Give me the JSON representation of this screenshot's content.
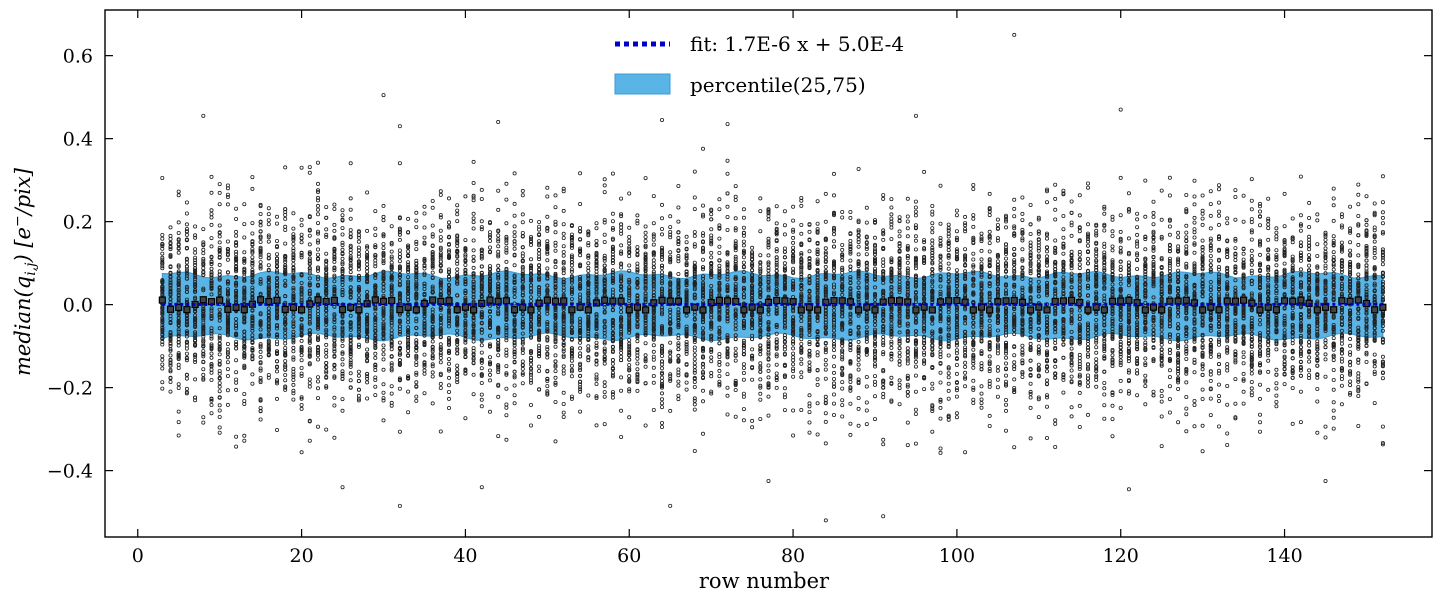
{
  "chart_data": {
    "type": "scatter",
    "xlabel": "row number",
    "ylabel": "median(q_{i,j}) [e^-/pix]",
    "ylabel_parts": {
      "prefix": "median(q",
      "subscript": "i,j",
      "middle": ") [e",
      "superscript": "−",
      "suffix": "/pix]"
    },
    "xlim": [
      -4,
      158
    ],
    "ylim": [
      -0.56,
      0.71
    ],
    "x_ticks": [
      0,
      20,
      40,
      60,
      80,
      100,
      120,
      140
    ],
    "x_tick_labels": [
      "0",
      "20",
      "40",
      "60",
      "80",
      "100",
      "120",
      "140"
    ],
    "y_ticks": [
      -0.4,
      -0.2,
      0.0,
      0.2,
      0.4,
      0.6
    ],
    "y_tick_labels": [
      "−0.4",
      "−0.2",
      "0.0",
      "0.2",
      "0.4",
      "0.6"
    ],
    "rows": {
      "start": 3,
      "end": 152,
      "step": 1
    },
    "points_per_row": 70,
    "percentile_band": {
      "label": "percentile(25,75)",
      "low": -0.078,
      "high": 0.072,
      "color": "#5ab4e5"
    },
    "fit": {
      "label": "fit: 1.7E-6 x + 5.0E-4",
      "slope": 1.7e-06,
      "intercept": 0.0005,
      "color": "#0000cc"
    },
    "median_marker_color": "#000000",
    "scatter_color": "#222222",
    "outliers": [
      {
        "x": 107,
        "y": 0.65
      },
      {
        "x": 30,
        "y": 0.505
      },
      {
        "x": 120,
        "y": 0.47
      },
      {
        "x": 95,
        "y": 0.455
      },
      {
        "x": 8,
        "y": 0.455
      },
      {
        "x": 64,
        "y": 0.445
      },
      {
        "x": 44,
        "y": 0.44
      },
      {
        "x": 32,
        "y": 0.43
      },
      {
        "x": 72,
        "y": 0.435
      },
      {
        "x": 84,
        "y": -0.52
      },
      {
        "x": 91,
        "y": -0.51
      },
      {
        "x": 32,
        "y": -0.485
      },
      {
        "x": 65,
        "y": -0.485
      },
      {
        "x": 25,
        "y": -0.44
      },
      {
        "x": 121,
        "y": -0.445
      },
      {
        "x": 42,
        "y": -0.44
      },
      {
        "x": 77,
        "y": -0.425
      },
      {
        "x": 145,
        "y": -0.425
      }
    ],
    "legend_position": "top-center",
    "grid": false
  }
}
